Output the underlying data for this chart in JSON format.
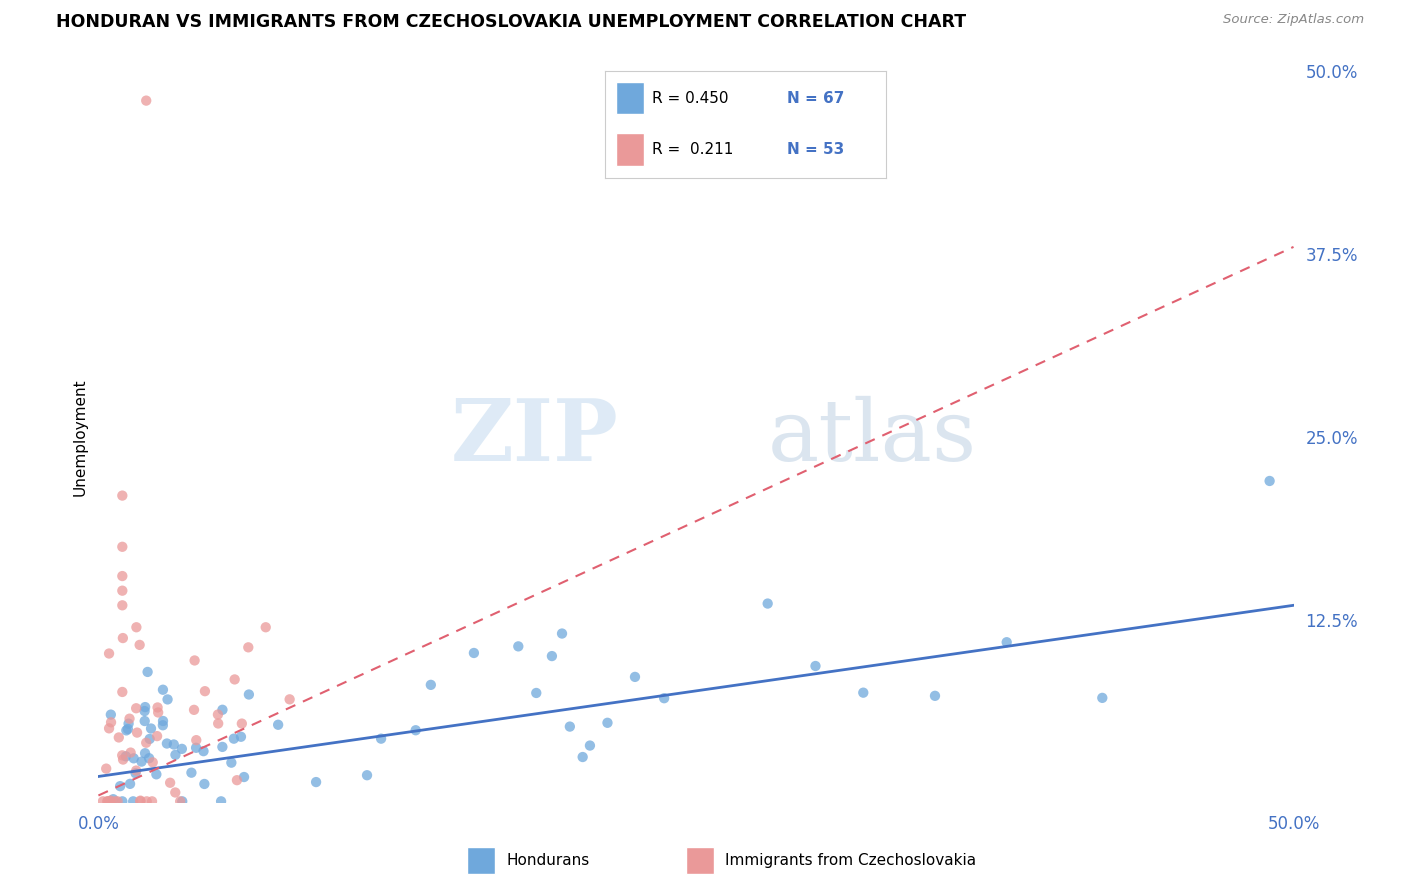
{
  "title": "HONDURAN VS IMMIGRANTS FROM CZECHOSLOVAKIA UNEMPLOYMENT CORRELATION CHART",
  "source": "Source: ZipAtlas.com",
  "ylabel": "Unemployment",
  "ytick_values": [
    0.125,
    0.25,
    0.375,
    0.5
  ],
  "ytick_labels": [
    "12.5%",
    "25.0%",
    "37.5%",
    "50.0%"
  ],
  "xlim": [
    0.0,
    0.5
  ],
  "ylim": [
    0.0,
    0.5
  ],
  "blue_color": "#6fa8dc",
  "pink_color": "#ea9999",
  "trend_blue_color": "#4472c4",
  "trend_pink_color": "#e06070",
  "label_color": "#4472c4",
  "scatter_size": 55,
  "watermark_zip": "ZIP",
  "watermark_atlas": "atlas",
  "legend_R1": "R = 0.450",
  "legend_N1": "N = 67",
  "legend_R2": "R =  0.211",
  "legend_N2": "N = 53",
  "blue_trend_y0": 0.018,
  "blue_trend_y1": 0.135,
  "pink_trend_y0": 0.005,
  "pink_trend_y1": 0.38
}
